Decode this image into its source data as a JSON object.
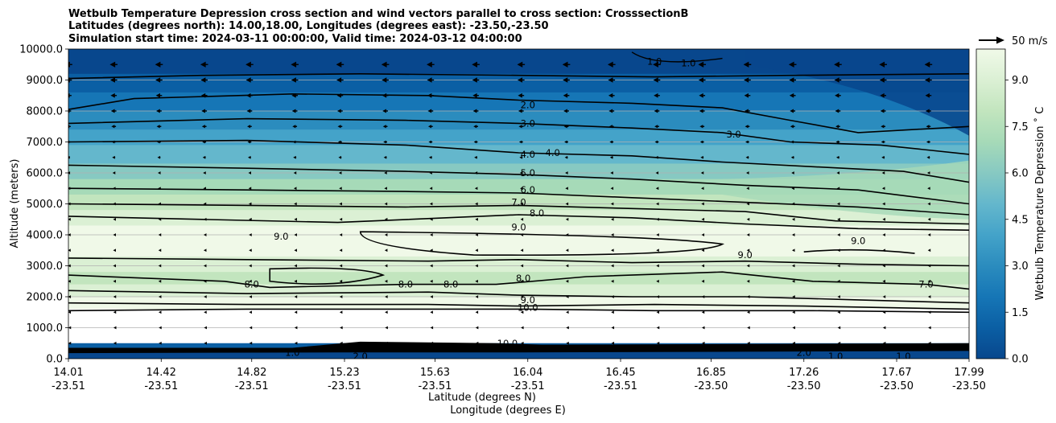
{
  "chart_data": {
    "type": "contour",
    "title_lines": [
      "Wetbulb Temperature Depression cross section and wind vectors parallel to cross section: CrosssectionB",
      "Latitudes (degrees north): 14.00,18.00, Longitudes (degrees east): -23.50,-23.50",
      "Simulation start time: 2024-03-11 00:00:00, Valid time: 2024-03-12 04:00:00"
    ],
    "ylabel": "Altitude (meters)",
    "xlabel_lat": "Latitude (degrees N)",
    "xlabel_lon": "Longitude (degrees E)",
    "ylim": [
      0,
      10000
    ],
    "y_ticks": [
      "0.0",
      "1000.0",
      "2000.0",
      "3000.0",
      "4000.0",
      "5000.0",
      "6000.0",
      "7000.0",
      "8000.0",
      "9000.0",
      "10000.0"
    ],
    "x_ticks": [
      {
        "lat": "14.01",
        "lon": "-23.51"
      },
      {
        "lat": "14.42",
        "lon": "-23.51"
      },
      {
        "lat": "14.82",
        "lon": "-23.51"
      },
      {
        "lat": "15.23",
        "lon": "-23.51"
      },
      {
        "lat": "15.63",
        "lon": "-23.51"
      },
      {
        "lat": "16.04",
        "lon": "-23.51"
      },
      {
        "lat": "16.45",
        "lon": "-23.51"
      },
      {
        "lat": "16.85",
        "lon": "-23.50"
      },
      {
        "lat": "17.26",
        "lon": "-23.50"
      },
      {
        "lat": "17.67",
        "lon": "-23.50"
      },
      {
        "lat": "17.99",
        "lon": "-23.50"
      }
    ],
    "colorbar": {
      "label": "Wetbulb Temperature Depression ˚ C",
      "range": [
        0,
        10
      ],
      "ticks": [
        "0.0",
        "1.5",
        "3.0",
        "4.5",
        "6.0",
        "7.5",
        "9.0"
      ]
    },
    "quiver_key": "50 m/s",
    "contour_levels": [
      1,
      2,
      3,
      4,
      5,
      6,
      7,
      8,
      9,
      10
    ],
    "contour_labels": [
      {
        "text": "2.0",
        "value": 2.0,
        "x_lat": 16.04,
        "alt": 8200
      },
      {
        "text": "3.0",
        "value": 3.0,
        "x_lat": 16.04,
        "alt": 7600
      },
      {
        "text": "4.0",
        "value": 4.0,
        "x_lat": 16.04,
        "alt": 6600
      },
      {
        "text": "4.0",
        "value": 4.0,
        "x_lat": 16.15,
        "alt": 6650
      },
      {
        "text": "5.0",
        "value": 5.0,
        "x_lat": 16.04,
        "alt": 6000
      },
      {
        "text": "6.0",
        "value": 6.0,
        "x_lat": 16.04,
        "alt": 5450
      },
      {
        "text": "7.0",
        "value": 7.0,
        "x_lat": 16.0,
        "alt": 5050
      },
      {
        "text": "8.0",
        "value": 8.0,
        "x_lat": 16.08,
        "alt": 4700
      },
      {
        "text": "9.0",
        "value": 9.0,
        "x_lat": 16.0,
        "alt": 4250
      },
      {
        "text": "9.0",
        "value": 9.0,
        "x_lat": 14.95,
        "alt": 3950
      },
      {
        "text": "9.0",
        "value": 9.0,
        "x_lat": 17.0,
        "alt": 3350
      },
      {
        "text": "9.0",
        "value": 9.0,
        "x_lat": 17.5,
        "alt": 3800
      },
      {
        "text": "8.0",
        "value": 8.0,
        "x_lat": 14.82,
        "alt": 2400
      },
      {
        "text": "8.0",
        "value": 8.0,
        "x_lat": 15.5,
        "alt": 2400
      },
      {
        "text": "8.0",
        "value": 8.0,
        "x_lat": 15.7,
        "alt": 2400
      },
      {
        "text": "8.0",
        "value": 8.0,
        "x_lat": 16.02,
        "alt": 2600
      },
      {
        "text": "7.0",
        "value": 7.0,
        "x_lat": 17.8,
        "alt": 2400
      },
      {
        "text": "9.0",
        "value": 9.0,
        "x_lat": 16.04,
        "alt": 1900
      },
      {
        "text": "10.0",
        "value": 10.0,
        "x_lat": 16.04,
        "alt": 1650
      },
      {
        "text": "1.0",
        "value": 1.0,
        "x_lat": 16.6,
        "alt": 9600
      },
      {
        "text": "1.0",
        "value": 1.0,
        "x_lat": 16.75,
        "alt": 9550
      },
      {
        "text": "3.0",
        "value": 3.0,
        "x_lat": 16.95,
        "alt": 7250
      },
      {
        "text": "2.0",
        "value": 2.0,
        "x_lat": 15.3,
        "alt": 80
      },
      {
        "text": "1.0",
        "value": 1.0,
        "x_lat": 15.0,
        "alt": 200
      },
      {
        "text": "1.0",
        "value": 1.0,
        "x_lat": 17.4,
        "alt": 80
      },
      {
        "text": "1.0",
        "value": 1.0,
        "x_lat": 17.7,
        "alt": 80
      },
      {
        "text": "10.0",
        "value": 10.0,
        "x_lat": 15.95,
        "alt": 500
      },
      {
        "text": "2.0",
        "value": 2.0,
        "x_lat": 17.26,
        "alt": 200
      }
    ],
    "wind_u_by_altitude": [
      {
        "alt": 9500,
        "u": -20
      },
      {
        "alt": 9000,
        "u": -18
      },
      {
        "alt": 8500,
        "u": -16
      },
      {
        "alt": 8000,
        "u": -14
      },
      {
        "alt": 7500,
        "u": -12
      },
      {
        "alt": 7000,
        "u": -10
      },
      {
        "alt": 6500,
        "u": -8
      },
      {
        "alt": 6000,
        "u": -6
      },
      {
        "alt": 5500,
        "u": -5
      },
      {
        "alt": 5000,
        "u": -4
      },
      {
        "alt": 4500,
        "u": -3
      },
      {
        "alt": 4000,
        "u": -3
      },
      {
        "alt": 3500,
        "u": -3
      },
      {
        "alt": 3000,
        "u": -3
      },
      {
        "alt": 2500,
        "u": -3
      },
      {
        "alt": 2000,
        "u": -2
      },
      {
        "alt": 1500,
        "u": -2
      },
      {
        "alt": 1000,
        "u": -1
      },
      {
        "alt": 500,
        "u": -1
      }
    ]
  },
  "colors": {
    "fill_scale": [
      "#08478d",
      "#0b5fa4",
      "#1676b6",
      "#2b8cbe",
      "#44a3c9",
      "#64b7cc",
      "#87c9c2",
      "#a6dab8",
      "#c2e5be",
      "#dbf0d4",
      "#f0f9e8",
      "#ffffff"
    ]
  }
}
